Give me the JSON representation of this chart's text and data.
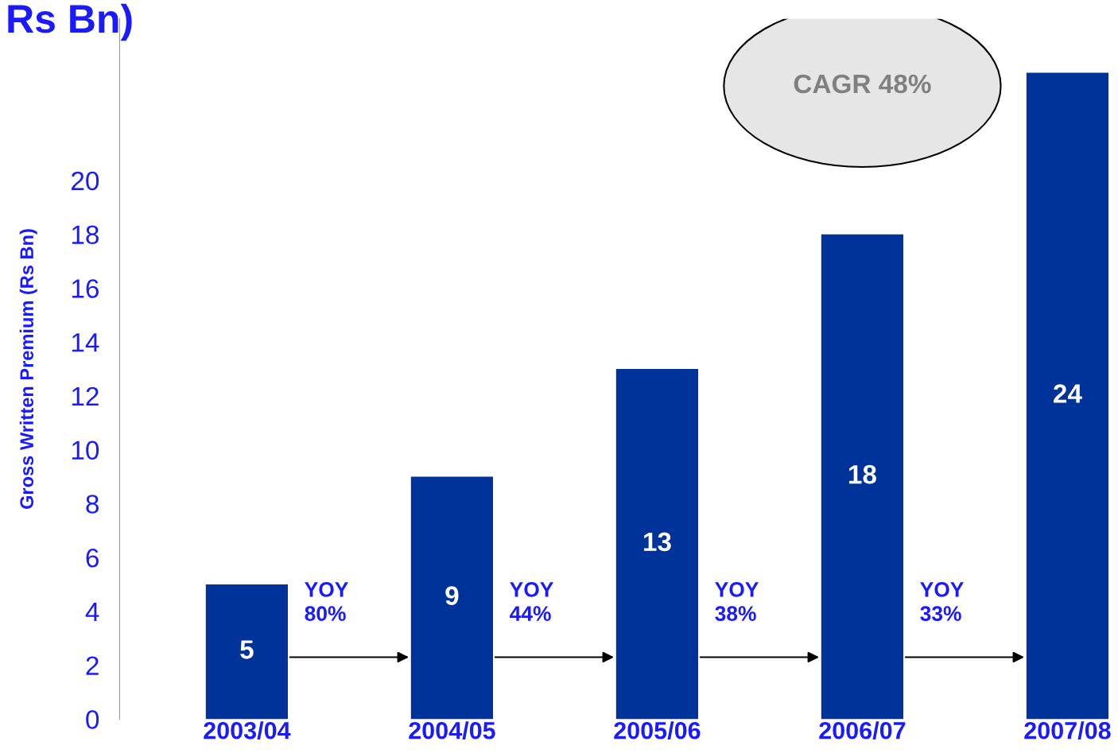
{
  "chart_data": {
    "type": "bar",
    "title": "Rs Bn)",
    "ylabel": "Gross Written Premium (Rs Bn)",
    "categories": [
      "2003/04",
      "2004/05",
      "2005/06",
      "2006/07",
      "2007/08"
    ],
    "values": [
      5,
      9,
      13,
      18,
      24
    ],
    "color": "#003399",
    "data_labels": true,
    "ylim": [
      0,
      26
    ],
    "yticks": [
      0,
      2,
      4,
      6,
      8,
      10,
      12,
      14,
      16,
      18,
      20
    ],
    "grid": false,
    "legend": false,
    "annotations": [
      "CAGR 48%",
      "YOY\n80%",
      "YOY\n44%",
      "YOY\n38%",
      "YOY\n33%"
    ]
  }
}
